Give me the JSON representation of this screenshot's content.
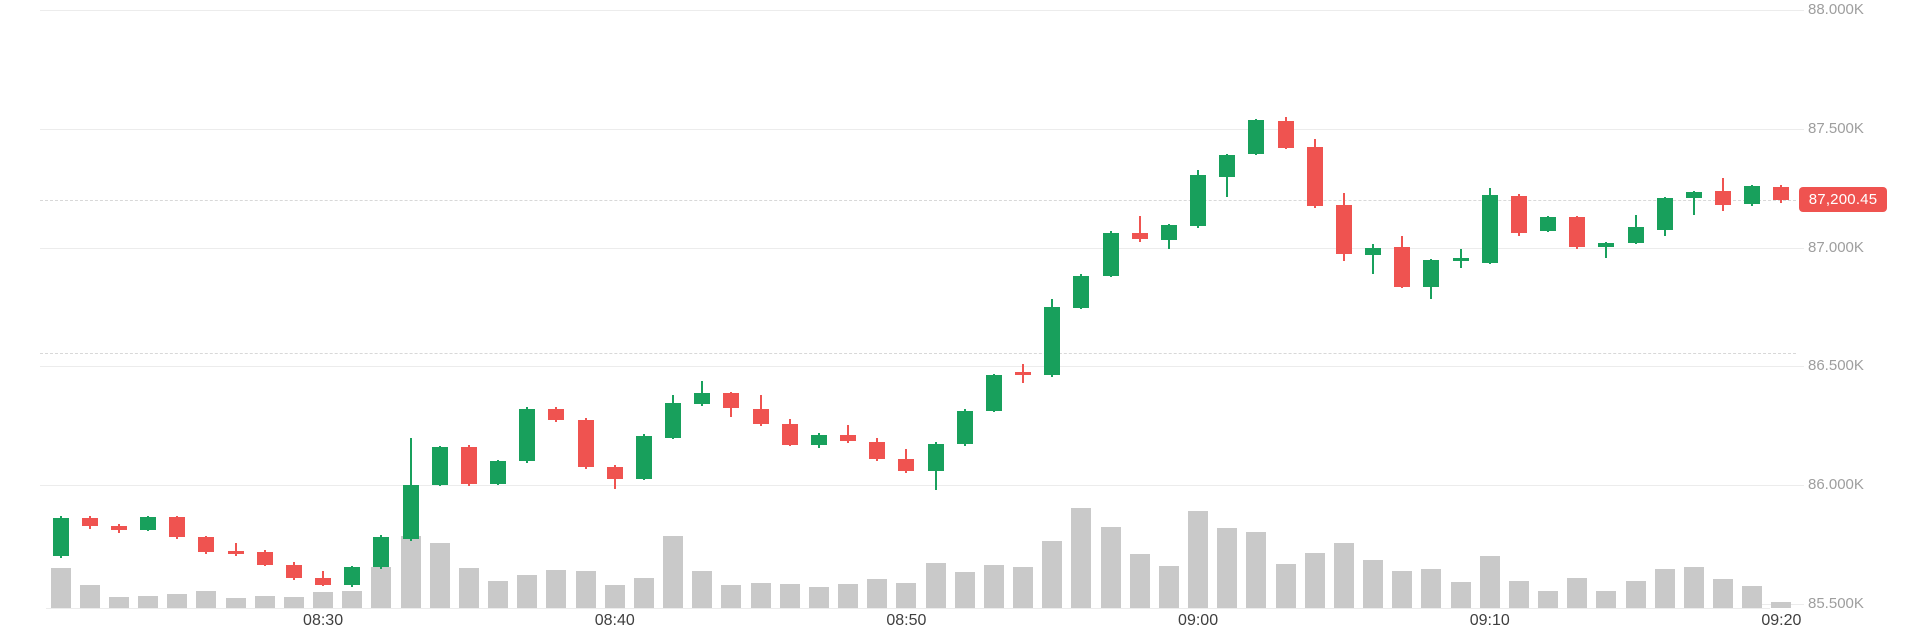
{
  "chart": {
    "price_badge": "87,200.45",
    "current_price": 87200.45,
    "reference_lines": {
      "last_price_dashed": 87200.45,
      "session_open_dashed": 86556
    },
    "y_axis": {
      "range": [
        85500,
        88000
      ],
      "ticks": [
        {
          "label": "88.000K",
          "price": 88000
        },
        {
          "label": "87.500K",
          "price": 87500
        },
        {
          "label": "87.000K",
          "price": 87000
        },
        {
          "label": "86.500K",
          "price": 86500
        },
        {
          "label": "86.000K",
          "price": 86000
        },
        {
          "label": "85.500K",
          "price": 85500
        }
      ]
    },
    "x_axis": {
      "tick_labels": [
        "08:30",
        "08:40",
        "08:50",
        "09:00",
        "09:10",
        "09:20"
      ],
      "tick_candle_indices": [
        9,
        19,
        29,
        39,
        49,
        59
      ]
    },
    "colors": {
      "up": "#18a05c",
      "down": "#ef5350",
      "volume": "#c9c9c9",
      "grid": "#ececec",
      "dashed": "#d8d8d8",
      "y_label_text": "#9e9e9e",
      "x_label_text": "#3f3f3f",
      "badge_bg": "#ef5350",
      "badge_text": "#ffffff",
      "background": "#ffffff"
    },
    "chart_data": {
      "type": "candlestick",
      "interval": "1m",
      "columns": [
        "time",
        "open",
        "high",
        "low",
        "close",
        "volume_rel"
      ],
      "volume_scale": "relative 0-100 (100 = session max at 08:56)",
      "rows": [
        [
          "08:21",
          85700,
          85870,
          85692,
          85860,
          40
        ],
        [
          "08:22",
          85860,
          85872,
          85815,
          85827,
          23
        ],
        [
          "08:23",
          85827,
          85838,
          85800,
          85812,
          11
        ],
        [
          "08:24",
          85812,
          85872,
          85806,
          85865,
          12
        ],
        [
          "08:25",
          85865,
          85872,
          85775,
          85782,
          14
        ],
        [
          "08:26",
          85782,
          85786,
          85710,
          85718,
          17
        ],
        [
          "08:27",
          85724,
          85756,
          85702,
          85712,
          10
        ],
        [
          "08:28",
          85720,
          85726,
          85658,
          85664,
          12
        ],
        [
          "08:29",
          85666,
          85675,
          85602,
          85608,
          11
        ],
        [
          "08:30",
          85608,
          85640,
          85576,
          85582,
          16
        ],
        [
          "08:31",
          85578,
          85662,
          85572,
          85656,
          17
        ],
        [
          "08:32",
          85654,
          85790,
          85648,
          85784,
          41
        ],
        [
          "08:33",
          85772,
          86200,
          85766,
          86000,
          72
        ],
        [
          "08:34",
          86000,
          86165,
          85996,
          86160,
          65
        ],
        [
          "08:35",
          86160,
          86168,
          85996,
          86003,
          40
        ],
        [
          "08:36",
          86005,
          86108,
          86000,
          86103,
          27
        ],
        [
          "08:37",
          86100,
          86328,
          86094,
          86322,
          33
        ],
        [
          "08:38",
          86322,
          86330,
          86268,
          86275,
          38
        ],
        [
          "08:39",
          86275,
          86282,
          86068,
          86075,
          37
        ],
        [
          "08:40",
          86075,
          86085,
          85985,
          86028,
          23
        ],
        [
          "08:41",
          86028,
          86215,
          86022,
          86205,
          30
        ],
        [
          "08:42",
          86200,
          86380,
          86194,
          86345,
          72
        ],
        [
          "08:43",
          86340,
          86440,
          86332,
          86388,
          37
        ],
        [
          "08:44",
          86388,
          86394,
          86285,
          86325,
          23
        ],
        [
          "08:45",
          86322,
          86378,
          86250,
          86256,
          25
        ],
        [
          "08:46",
          86256,
          86280,
          86163,
          86170,
          24
        ],
        [
          "08:47",
          86170,
          86220,
          86155,
          86210,
          21
        ],
        [
          "08:48",
          86212,
          86252,
          86178,
          86184,
          24
        ],
        [
          "08:49",
          86180,
          86198,
          86103,
          86110,
          29
        ],
        [
          "08:50",
          86112,
          86152,
          86050,
          86058,
          25
        ],
        [
          "08:51",
          86058,
          86180,
          85978,
          86174,
          45
        ],
        [
          "08:52",
          86172,
          86322,
          86166,
          86314,
          36
        ],
        [
          "08:53",
          86314,
          86470,
          86308,
          86462,
          43
        ],
        [
          "08:54",
          86476,
          86508,
          86428,
          86464,
          41
        ],
        [
          "08:55",
          86462,
          86782,
          86456,
          86748,
          67
        ],
        [
          "08:56",
          86745,
          86888,
          86740,
          86882,
          100
        ],
        [
          "08:57",
          86882,
          87070,
          86876,
          87060,
          81
        ],
        [
          "08:58",
          87060,
          87132,
          87022,
          87036,
          54
        ],
        [
          "08:59",
          87034,
          87098,
          86996,
          87094,
          42
        ],
        [
          "09:00",
          87090,
          87326,
          87084,
          87306,
          97
        ],
        [
          "09:01",
          87298,
          87395,
          87213,
          87390,
          80
        ],
        [
          "09:02",
          87392,
          87540,
          87388,
          87536,
          76
        ],
        [
          "09:03",
          87532,
          87548,
          87414,
          87420,
          44
        ],
        [
          "09:04",
          87424,
          87456,
          87168,
          87176,
          55
        ],
        [
          "09:05",
          87180,
          87230,
          86945,
          86972,
          65
        ],
        [
          "09:06",
          86968,
          87015,
          86888,
          86998,
          48
        ],
        [
          "09:07",
          87004,
          87050,
          86828,
          86836,
          37
        ],
        [
          "09:08",
          86836,
          86952,
          86782,
          86948,
          39
        ],
        [
          "09:09",
          86950,
          86994,
          86912,
          86958,
          26
        ],
        [
          "09:10",
          86936,
          87250,
          86930,
          87220,
          52
        ],
        [
          "09:11",
          87218,
          87224,
          87050,
          87060,
          27
        ],
        [
          "09:12",
          87070,
          87132,
          87064,
          87128,
          17
        ],
        [
          "09:13",
          87128,
          87134,
          86994,
          87002,
          30
        ],
        [
          "09:14",
          87002,
          87024,
          86958,
          87020,
          17
        ],
        [
          "09:15",
          87020,
          87136,
          87014,
          87086,
          27
        ],
        [
          "09:16",
          87075,
          87212,
          87048,
          87208,
          39
        ],
        [
          "09:17",
          87208,
          87240,
          87136,
          87236,
          41
        ],
        [
          "09:18",
          87238,
          87292,
          87156,
          87180,
          29
        ],
        [
          "09:19",
          87182,
          87262,
          87176,
          87258,
          22
        ],
        [
          "09:20",
          87256,
          87262,
          87188,
          87200.45,
          6
        ]
      ]
    }
  }
}
